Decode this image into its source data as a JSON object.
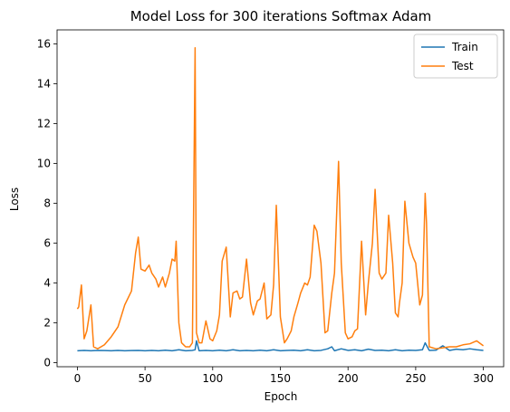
{
  "chart_data": {
    "type": "line",
    "title": "Model Loss for 300 iterations Softmax Adam",
    "xlabel": "Epoch",
    "ylabel": "Loss",
    "xlim": [
      -15,
      315
    ],
    "ylim": [
      -0.2,
      16.7
    ],
    "xticks": [
      0,
      50,
      100,
      150,
      200,
      250,
      300
    ],
    "yticks": [
      0,
      2,
      4,
      6,
      8,
      10,
      12,
      14,
      16
    ],
    "grid": false,
    "legend_position": "top-right",
    "series": [
      {
        "name": "Train",
        "color": "#1f77b4",
        "x": [
          0,
          5,
          10,
          15,
          20,
          25,
          30,
          35,
          40,
          45,
          50,
          55,
          60,
          65,
          70,
          75,
          80,
          85,
          87,
          88,
          90,
          95,
          100,
          105,
          110,
          115,
          120,
          125,
          130,
          135,
          140,
          145,
          150,
          155,
          160,
          165,
          170,
          175,
          180,
          185,
          188,
          190,
          195,
          200,
          205,
          210,
          215,
          220,
          225,
          230,
          235,
          240,
          245,
          250,
          255,
          257,
          260,
          265,
          270,
          275,
          280,
          285,
          290,
          295,
          300
        ],
        "y": [
          0.6,
          0.62,
          0.6,
          0.62,
          0.61,
          0.6,
          0.62,
          0.6,
          0.61,
          0.62,
          0.6,
          0.62,
          0.6,
          0.63,
          0.6,
          0.65,
          0.6,
          0.62,
          0.65,
          1.1,
          0.6,
          0.62,
          0.6,
          0.63,
          0.6,
          0.65,
          0.6,
          0.62,
          0.6,
          0.63,
          0.6,
          0.65,
          0.6,
          0.62,
          0.63,
          0.6,
          0.65,
          0.6,
          0.62,
          0.7,
          0.8,
          0.6,
          0.7,
          0.62,
          0.65,
          0.6,
          0.68,
          0.62,
          0.63,
          0.6,
          0.65,
          0.6,
          0.63,
          0.62,
          0.65,
          1.0,
          0.62,
          0.63,
          0.85,
          0.62,
          0.68,
          0.65,
          0.7,
          0.65,
          0.62
        ]
      },
      {
        "name": "Test",
        "color": "#ff7f0e",
        "x": [
          0,
          1,
          3,
          5,
          7,
          10,
          12,
          15,
          20,
          25,
          30,
          35,
          40,
          43,
          45,
          47,
          50,
          53,
          55,
          58,
          60,
          63,
          65,
          68,
          70,
          72,
          73,
          75,
          77,
          80,
          83,
          85,
          87,
          88,
          90,
          92,
          95,
          98,
          100,
          103,
          105,
          107,
          110,
          113,
          115,
          118,
          120,
          122,
          125,
          128,
          130,
          133,
          135,
          138,
          140,
          143,
          145,
          147,
          150,
          153,
          155,
          158,
          160,
          163,
          165,
          168,
          170,
          172,
          175,
          177,
          180,
          183,
          185,
          188,
          190,
          193,
          195,
          198,
          200,
          203,
          205,
          207,
          210,
          213,
          215,
          218,
          220,
          223,
          225,
          228,
          230,
          233,
          235,
          237,
          238,
          240,
          242,
          245,
          248,
          250,
          253,
          255,
          257,
          258,
          260,
          265,
          270,
          275,
          280,
          285,
          290,
          295,
          300
        ],
        "y": [
          2.7,
          2.8,
          3.9,
          1.2,
          1.6,
          2.9,
          0.8,
          0.7,
          0.9,
          1.3,
          1.8,
          2.9,
          3.6,
          5.5,
          6.3,
          4.7,
          4.6,
          4.9,
          4.5,
          4.2,
          3.8,
          4.3,
          3.8,
          4.5,
          5.2,
          5.1,
          6.1,
          2.0,
          1.0,
          0.8,
          0.8,
          1.0,
          15.8,
          1.5,
          1.0,
          1.0,
          2.1,
          1.2,
          1.1,
          1.6,
          2.4,
          5.1,
          5.8,
          2.3,
          3.5,
          3.6,
          3.2,
          3.3,
          5.2,
          3.0,
          2.4,
          3.1,
          3.2,
          4.0,
          2.2,
          2.4,
          3.9,
          7.9,
          2.3,
          1.0,
          1.2,
          1.6,
          2.3,
          3.0,
          3.5,
          4.0,
          3.9,
          4.3,
          6.9,
          6.6,
          5.0,
          1.5,
          1.6,
          3.5,
          4.5,
          10.1,
          5.0,
          1.5,
          1.2,
          1.3,
          1.6,
          1.7,
          6.1,
          2.4,
          4.0,
          6.0,
          8.7,
          4.5,
          4.2,
          4.5,
          7.4,
          5.0,
          2.5,
          2.3,
          3.0,
          4.0,
          8.1,
          6.0,
          5.3,
          5.0,
          2.9,
          3.4,
          8.5,
          7.0,
          0.8,
          0.7,
          0.75,
          0.8,
          0.8,
          0.9,
          0.95,
          1.1,
          0.85
        ]
      }
    ]
  }
}
